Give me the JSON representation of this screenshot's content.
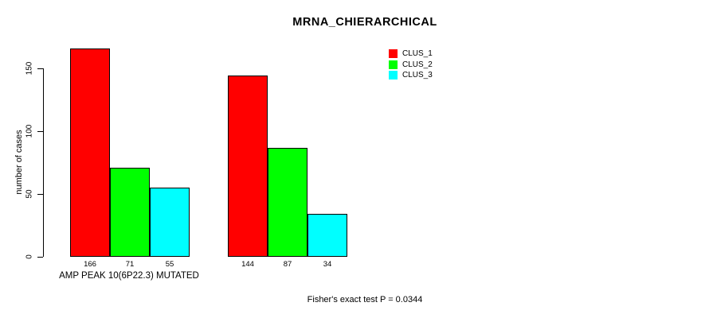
{
  "title": "MRNA_CHIERARCHICAL",
  "y_axis": {
    "label": "number of cases",
    "ticks": [
      0,
      50,
      100,
      150
    ]
  },
  "x_axis": {
    "group1_label": "AMP PEAK 10(6P22.3) MUTATED"
  },
  "footnote": "Fisher's exact test P = 0.0344",
  "legend": {
    "position": "top-right",
    "entries": [
      {
        "label": "CLUS_1",
        "color": "#FF0000"
      },
      {
        "label": "CLUS_2",
        "color": "#00FF00"
      },
      {
        "label": "CLUS_3",
        "color": "#00FFFF"
      }
    ]
  },
  "chart_data": {
    "type": "bar",
    "title": "MRNA_CHIERARCHICAL",
    "xlabel": "AMP PEAK 10(6P22.3) MUTATED",
    "ylabel": "number of cases",
    "categories": [
      "AMP PEAK 10(6P22.3) MUTATED",
      ""
    ],
    "series": [
      {
        "name": "CLUS_1",
        "color": "#FF0000",
        "values": [
          166,
          144
        ]
      },
      {
        "name": "CLUS_2",
        "color": "#00FF00",
        "values": [
          71,
          87
        ]
      },
      {
        "name": "CLUS_3",
        "color": "#00FFFF",
        "values": [
          55,
          34
        ]
      }
    ],
    "bar_value_labels": [
      [
        166,
        71,
        55
      ],
      [
        144,
        87,
        34
      ]
    ],
    "ylim": [
      0,
      175
    ],
    "yticks": [
      0,
      50,
      100,
      150
    ],
    "grid": false,
    "legend_position": "top-right",
    "annotation": "Fisher's exact test P = 0.0344"
  }
}
